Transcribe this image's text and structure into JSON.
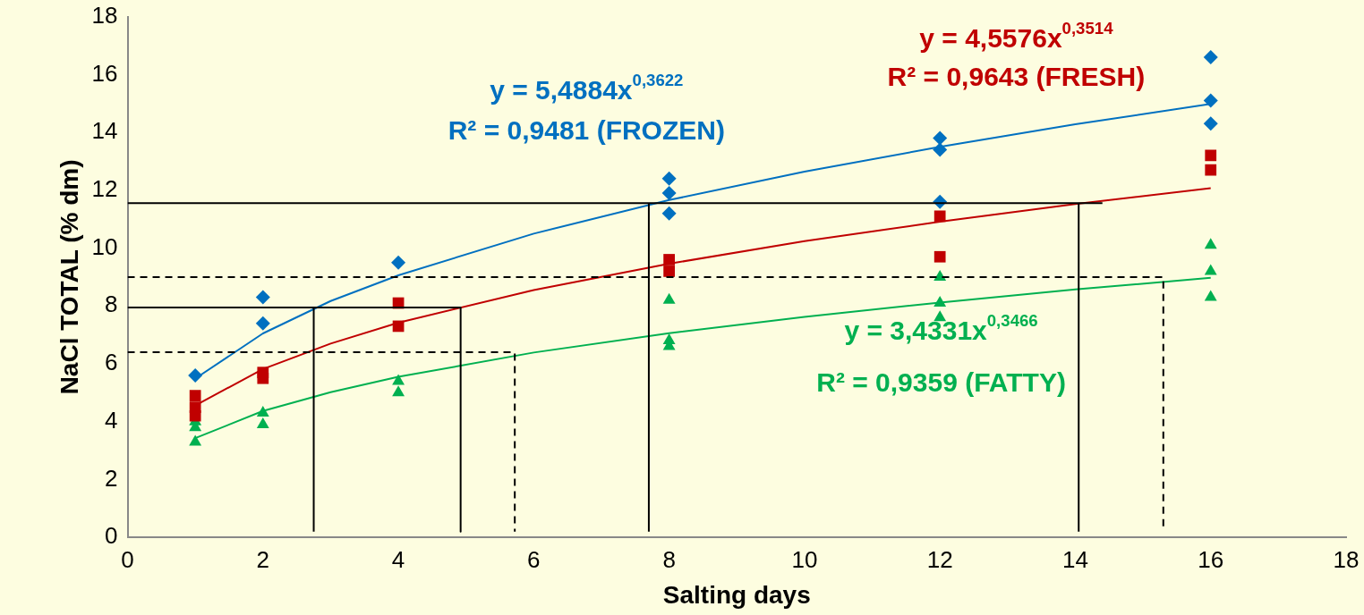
{
  "chart_data": {
    "type": "scatter",
    "xlabel": "Salting days",
    "ylabel": "NaCl TOTAL (% dm)",
    "xlim": [
      0,
      18
    ],
    "xticks": [
      0,
      2,
      4,
      6,
      8,
      10,
      12,
      14,
      16,
      18
    ],
    "ylim": [
      0,
      18
    ],
    "yticks": [
      0,
      2,
      4,
      6,
      8,
      10,
      12,
      14,
      16,
      18
    ],
    "grid": false,
    "legend": false,
    "series": [
      {
        "type": "line",
        "color": "#000000",
        "line_style": "solid",
        "marker": "none",
        "x": [
          0,
          14.4,
          null,
          7.7,
          7.7,
          null,
          14.05,
          14.05,
          null,
          0,
          4.92,
          4.92,
          null,
          2.75,
          2.75
        ],
        "values": [
          11.55,
          11.55,
          null,
          0.2,
          11.55,
          null,
          0.2,
          11.55,
          null,
          7.95,
          7.95,
          0.2,
          null,
          0.2,
          7.95
        ]
      },
      {
        "type": "line",
        "color": "#000000",
        "line_style": "dashed",
        "marker": "none",
        "x": [
          0,
          15.3,
          15.3,
          null,
          0,
          5.72,
          5.72
        ],
        "values": [
          9.0,
          9.0,
          0.2,
          null,
          6.4,
          6.4,
          0.2
        ]
      },
      {
        "type": "line",
        "color": "#0070c0",
        "line_style": "solid",
        "marker": "none",
        "x": [
          1,
          2,
          3,
          4,
          6,
          8,
          10,
          12,
          14,
          16
        ],
        "values": [
          5.49,
          7.05,
          8.17,
          9.06,
          10.5,
          11.66,
          12.64,
          13.5,
          14.28,
          14.98
        ]
      },
      {
        "type": "line",
        "color": "#c00000",
        "line_style": "solid",
        "marker": "none",
        "x": [
          1,
          2,
          3,
          4,
          6,
          8,
          10,
          12,
          14,
          16
        ],
        "values": [
          4.56,
          5.82,
          6.7,
          7.42,
          8.55,
          9.46,
          10.24,
          10.91,
          11.52,
          12.07
        ]
      },
      {
        "type": "line",
        "color": "#00b050",
        "line_style": "solid",
        "marker": "none",
        "x": [
          1,
          2,
          3,
          4,
          6,
          8,
          10,
          12,
          14,
          16
        ],
        "values": [
          3.43,
          4.37,
          5.02,
          5.55,
          6.39,
          7.06,
          7.62,
          8.12,
          8.57,
          8.97
        ]
      },
      {
        "color": "#0070c0",
        "marker": "diamond",
        "x": [
          1,
          2,
          2,
          4,
          8,
          8,
          8,
          12,
          12,
          12,
          16,
          16,
          16
        ],
        "values": [
          5.6,
          8.3,
          7.4,
          9.5,
          12.4,
          11.9,
          11.2,
          13.8,
          13.4,
          11.6,
          16.6,
          15.1,
          14.3
        ]
      },
      {
        "color": "#c00000",
        "marker": "square",
        "x": [
          1,
          1,
          1,
          2,
          2,
          4,
          4,
          8,
          8,
          12,
          12,
          16,
          16
        ],
        "values": [
          4.9,
          4.5,
          4.2,
          5.7,
          5.5,
          8.1,
          7.3,
          9.6,
          9.2,
          11.1,
          9.7,
          13.2,
          12.7
        ]
      },
      {
        "color": "#00b050",
        "marker": "triangle",
        "x": [
          1,
          1,
          1,
          2,
          2,
          4,
          4,
          8,
          8,
          8,
          12,
          12,
          12,
          16,
          16,
          16
        ],
        "values": [
          4.0,
          3.8,
          3.3,
          4.3,
          3.9,
          5.4,
          5.0,
          8.2,
          6.8,
          6.6,
          9.0,
          8.1,
          7.6,
          10.1,
          9.2,
          8.3
        ]
      }
    ],
    "annotations": [
      "y = 5,4884x$^{0,3622}$",
      "R² = 0,9481 (FROZEN)",
      "y = 4,5576x$^{0,3514}$",
      "R² = 0,9643 (FRESH)",
      "y = 3,4331x$^{0,3466}$",
      "R² = 0,9359 (FATTY)"
    ]
  }
}
